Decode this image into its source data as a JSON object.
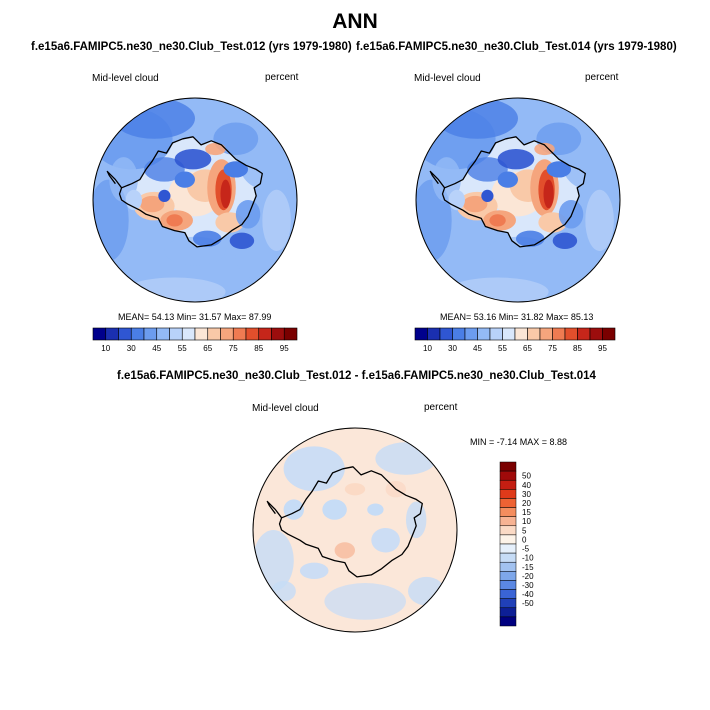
{
  "main_title": "ANN",
  "colors": {
    "scale": [
      "#00008c",
      "#1a2fb0",
      "#2f56d2",
      "#4a7ee6",
      "#6c9cef",
      "#93baf6",
      "#b8d2fa",
      "#d9e7fb",
      "#fbe6d6",
      "#f9c9a8",
      "#f5a57d",
      "#ef7b52",
      "#e24f2c",
      "#c6261a",
      "#9c0d0d",
      "#7a0000"
    ],
    "diff_scale": [
      "#7a0000",
      "#a00a0a",
      "#c41e12",
      "#df3a1a",
      "#ee6233",
      "#f48d5e",
      "#f7b393",
      "#fbdac5",
      "#fdf3e8",
      "#e6f0fb",
      "#c6dcf6",
      "#a2c2f0",
      "#7ea7ea",
      "#5b88e3",
      "#3a64d6",
      "#2040b8",
      "#0d1f96",
      "#000080"
    ],
    "ocean_base": "#c4d9f6",
    "land_base": "#dfeafa",
    "diff_base": "#fbe7d9"
  },
  "chart_data": [
    {
      "type": "heatmap",
      "projection": "polar stereographic (south pole)",
      "title": "f.e15a6.FAMIPC5.ne30_ne30.Club_Test.012 (yrs 1979-1980)",
      "left_label": "Mid-level cloud",
      "right_label": "percent",
      "stats": {
        "mean": "54.13",
        "min": "31.57",
        "max": "87.99"
      },
      "stats_text": "MEAN=  54.13  Min=  31.57  Max=  87.99",
      "colorbar_ticks": [
        "10",
        "30",
        "45",
        "55",
        "65",
        "75",
        "85",
        "95"
      ],
      "levels": [
        5,
        10,
        20,
        30,
        40,
        45,
        50,
        55,
        60,
        65,
        70,
        75,
        80,
        85,
        90,
        95
      ]
    },
    {
      "type": "heatmap",
      "projection": "polar stereographic (south pole)",
      "title": "f.e15a6.FAMIPC5.ne30_ne30.Club_Test.014 (yrs 1979-1980)",
      "left_label": "Mid-level cloud",
      "right_label": "percent",
      "stats": {
        "mean": "53.16",
        "min": "31.82",
        "max": "85.13"
      },
      "stats_text": "MEAN=  53.16  Min=  31.82  Max=  85.13",
      "colorbar_ticks": [
        "10",
        "30",
        "45",
        "55",
        "65",
        "75",
        "85",
        "95"
      ],
      "levels": [
        5,
        10,
        20,
        30,
        40,
        45,
        50,
        55,
        60,
        65,
        70,
        75,
        80,
        85,
        90,
        95
      ]
    },
    {
      "type": "heatmap",
      "projection": "polar stereographic (south pole)",
      "title": "f.e15a6.FAMIPC5.ne30_ne30.Club_Test.012 - f.e15a6.FAMIPC5.ne30_ne30.Club_Test.014",
      "left_label": "Mid-level cloud",
      "right_label": "percent",
      "stats": {
        "min": "-7.14",
        "max": "8.88"
      },
      "stats_text": "MIN =  -7.14 MAX =   8.88",
      "colorbar_ticks": [
        "50",
        "40",
        "30",
        "20",
        "15",
        "10",
        "5",
        "0",
        "-5",
        "-10",
        "-15",
        "-20",
        "-30",
        "-40",
        "-50"
      ]
    }
  ]
}
